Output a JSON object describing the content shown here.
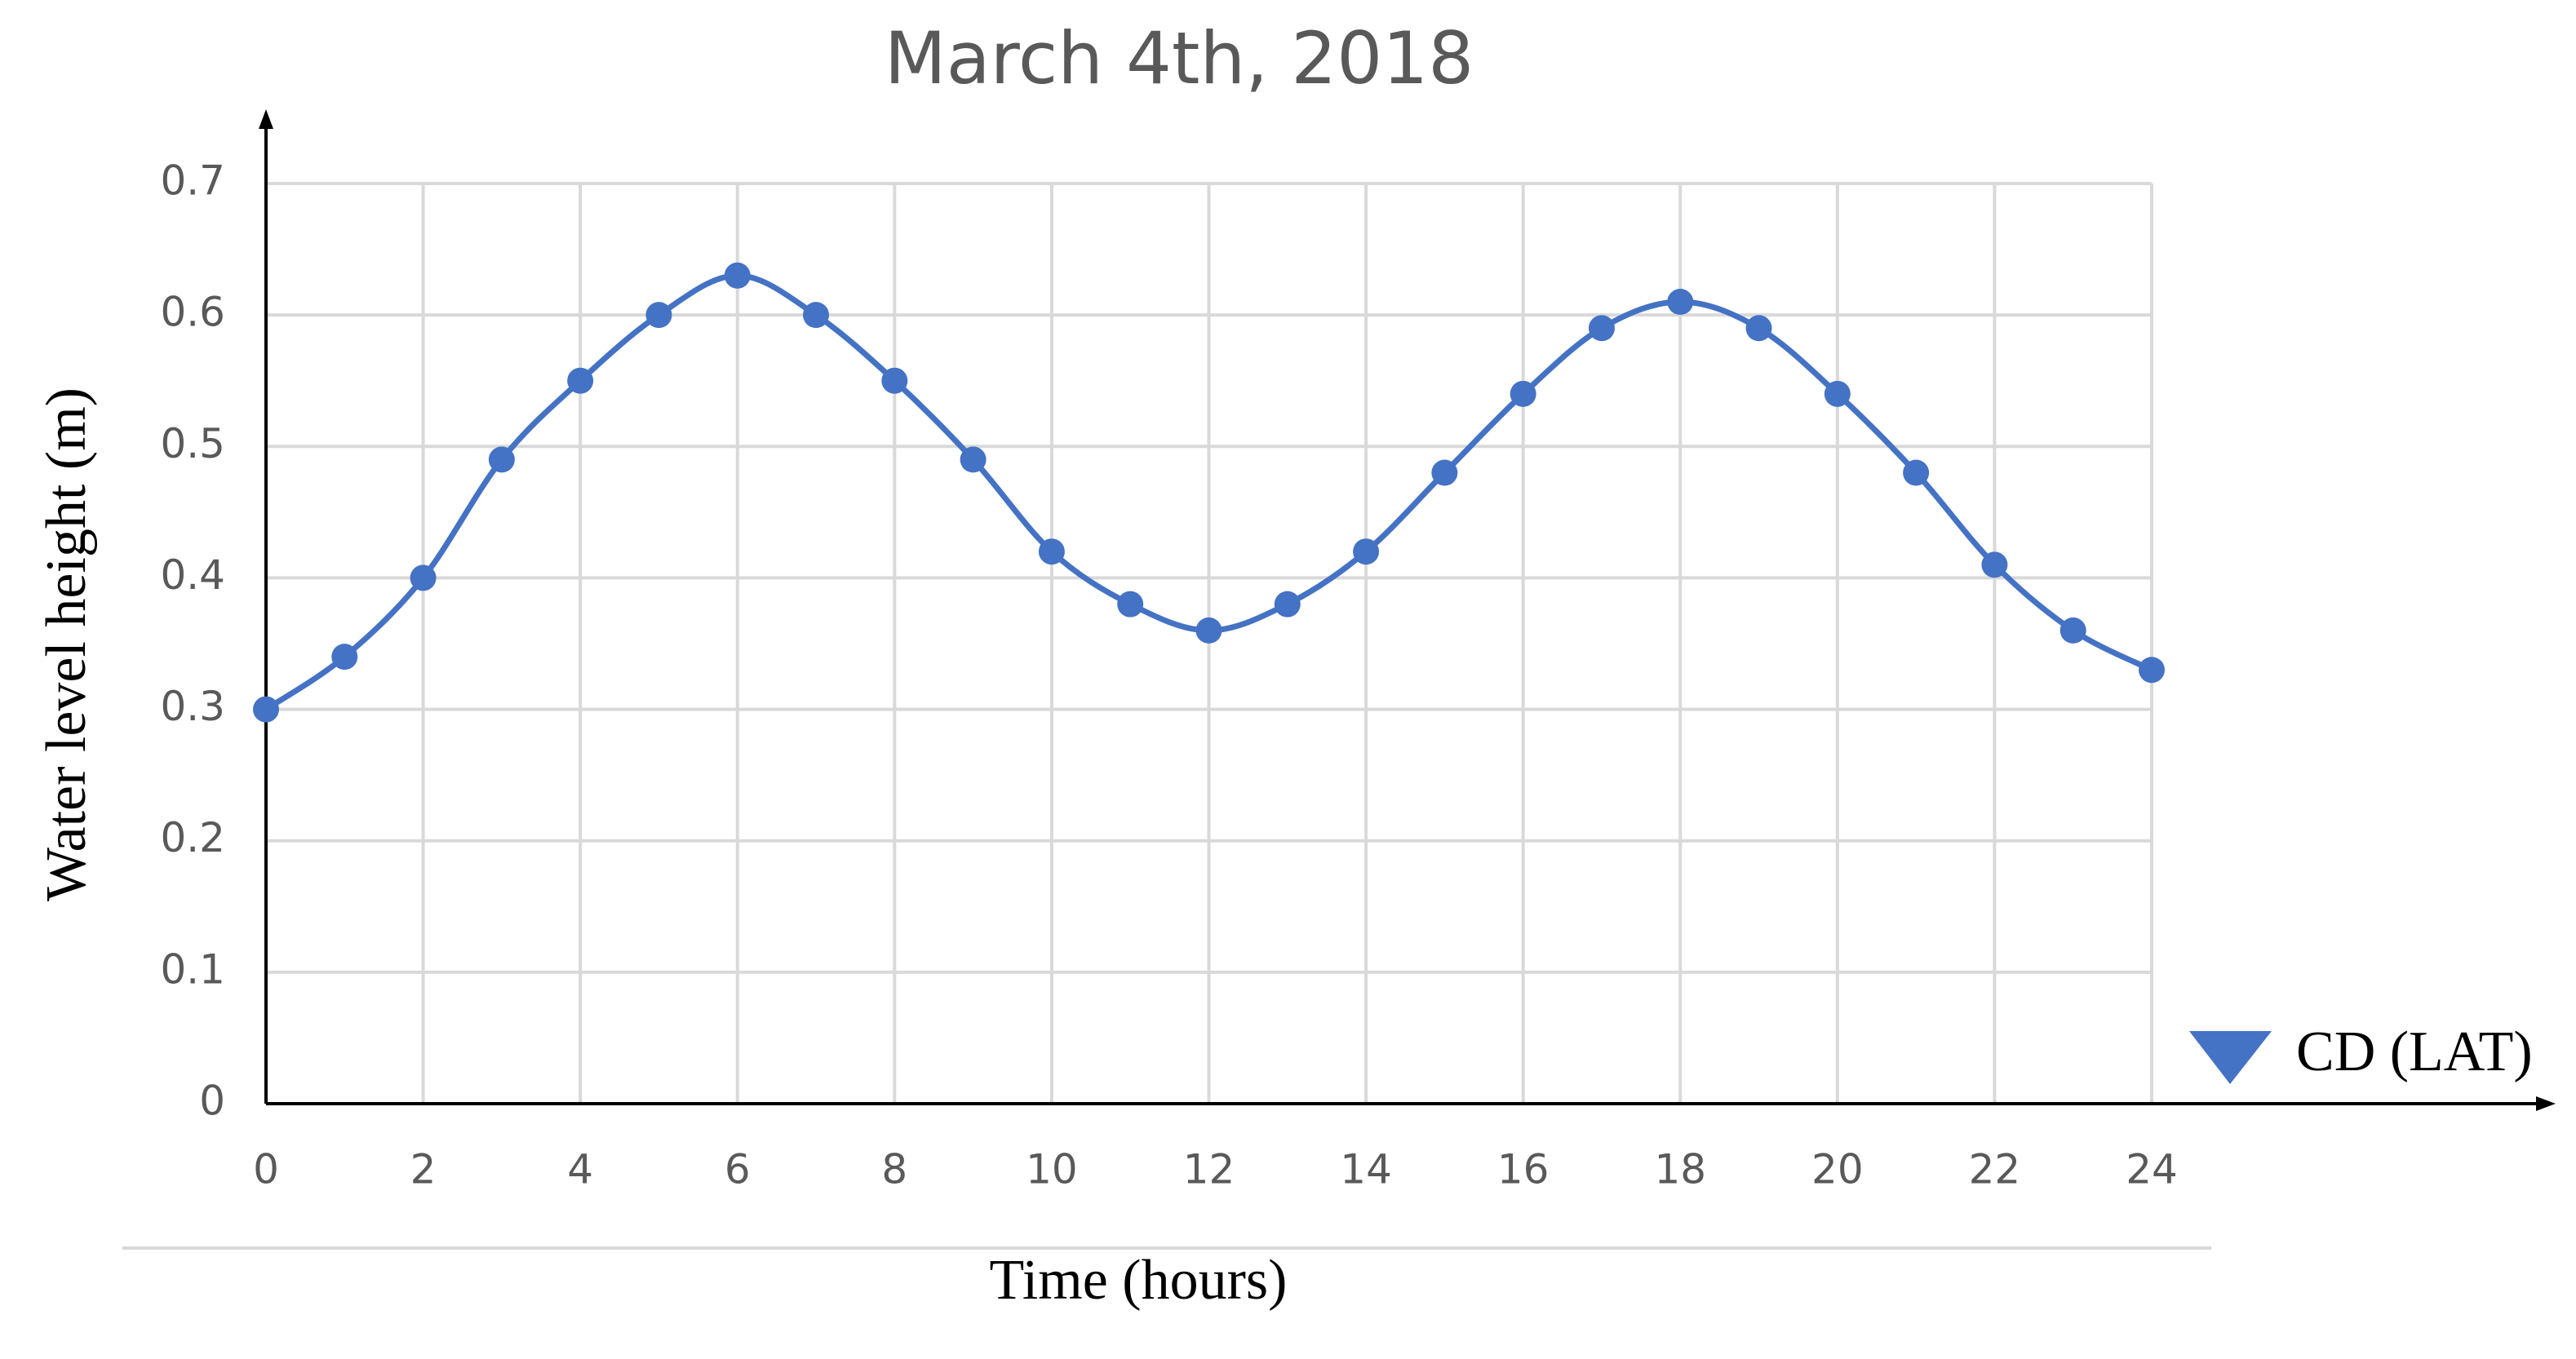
{
  "chart_data": {
    "type": "line",
    "title": "March 4th, 2018",
    "x_label": "Time (hours)",
    "y_label": "Water level height (m)",
    "annotation": "CD (LAT)",
    "x": [
      0,
      1,
      2,
      3,
      4,
      5,
      6,
      7,
      8,
      9,
      10,
      11,
      12,
      13,
      14,
      15,
      16,
      17,
      18,
      19,
      20,
      21,
      22,
      23,
      24
    ],
    "values": [
      0.3,
      0.34,
      0.4,
      0.49,
      0.55,
      0.6,
      0.63,
      0.6,
      0.55,
      0.49,
      0.42,
      0.38,
      0.36,
      0.38,
      0.42,
      0.48,
      0.54,
      0.59,
      0.61,
      0.59,
      0.54,
      0.48,
      0.41,
      0.36,
      0.33
    ],
    "color": "#4472c4",
    "xlim": [
      0,
      24
    ],
    "xticks": [
      0,
      2,
      4,
      6,
      8,
      10,
      12,
      14,
      16,
      18,
      20,
      22,
      24
    ],
    "ylim": [
      0,
      0.7
    ],
    "yticks": [
      0,
      0.1,
      0.2,
      0.3,
      0.4,
      0.5,
      0.6,
      0.7
    ],
    "grid": true
  }
}
